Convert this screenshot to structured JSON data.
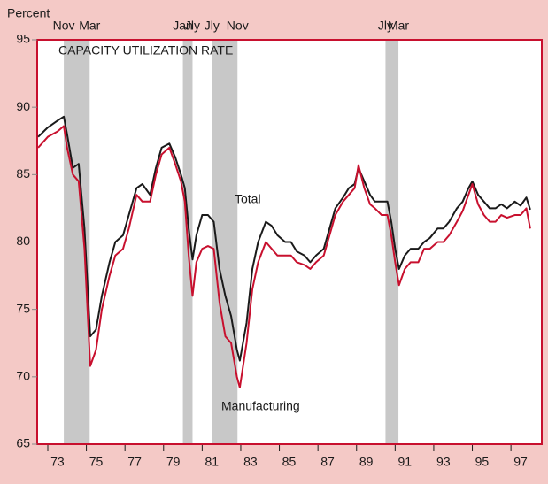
{
  "chart_data": {
    "type": "line",
    "y_label": "Percent",
    "title": "CAPACITY UTILIZATION RATE",
    "annotations": [
      "Total",
      "Manufacturing"
    ],
    "x": [
      1972.5,
      1973.0,
      1973.5,
      1973.83,
      1974.0,
      1974.3,
      1974.6,
      1974.9,
      1975.2,
      1975.5,
      1975.8,
      1976.2,
      1976.5,
      1976.9,
      1977.2,
      1977.6,
      1977.9,
      1978.3,
      1978.6,
      1978.9,
      1979.3,
      1979.6,
      1979.9,
      1980.1,
      1980.3,
      1980.5,
      1980.7,
      1981.0,
      1981.3,
      1981.6,
      1981.9,
      1982.2,
      1982.5,
      1982.8,
      1982.95,
      1983.3,
      1983.6,
      1983.9,
      1984.3,
      1984.6,
      1984.9,
      1985.3,
      1985.6,
      1985.9,
      1986.3,
      1986.6,
      1986.9,
      1987.3,
      1987.6,
      1987.9,
      1988.3,
      1988.6,
      1988.9,
      1989.1,
      1989.4,
      1989.7,
      1989.95,
      1990.3,
      1990.6,
      1990.8,
      1991.0,
      1991.2,
      1991.5,
      1991.8,
      1992.2,
      1992.5,
      1992.8,
      1993.2,
      1993.5,
      1993.8,
      1994.2,
      1994.5,
      1994.8,
      1995.0,
      1995.3,
      1995.6,
      1995.9,
      1996.2,
      1996.5,
      1996.8,
      1997.2,
      1997.5,
      1997.8,
      1998.0
    ],
    "series": [
      {
        "name": "Total",
        "color": "#1a1a1a",
        "values": [
          87.8,
          88.5,
          89.0,
          89.3,
          88.0,
          85.5,
          85.8,
          81.0,
          73.0,
          73.5,
          76.0,
          78.5,
          80.0,
          80.5,
          82.0,
          84.0,
          84.3,
          83.5,
          85.5,
          87.0,
          87.3,
          86.3,
          85.0,
          84.0,
          81.0,
          78.7,
          80.5,
          82.0,
          82.0,
          81.5,
          78.0,
          76.0,
          74.5,
          72.0,
          71.2,
          74.0,
          78.0,
          80.0,
          81.5,
          81.2,
          80.5,
          80.0,
          80.0,
          79.3,
          79.0,
          78.5,
          79.0,
          79.5,
          81.0,
          82.5,
          83.3,
          84.0,
          84.3,
          85.5,
          84.5,
          83.5,
          83.0,
          83.0,
          83.0,
          81.5,
          79.5,
          78.0,
          79.0,
          79.5,
          79.5,
          80.0,
          80.3,
          81.0,
          81.0,
          81.5,
          82.5,
          83.0,
          84.0,
          84.5,
          83.5,
          83.0,
          82.5,
          82.5,
          82.8,
          82.5,
          83.0,
          82.7,
          83.3,
          82.4
        ]
      },
      {
        "name": "Manufacturing",
        "color": "#c8102e",
        "values": [
          87.0,
          87.8,
          88.2,
          88.6,
          87.0,
          85.0,
          84.5,
          79.5,
          70.8,
          72.0,
          75.0,
          77.5,
          79.0,
          79.5,
          81.0,
          83.5,
          83.0,
          83.0,
          85.0,
          86.5,
          87.0,
          85.8,
          84.5,
          83.0,
          79.0,
          76.0,
          78.5,
          79.5,
          79.7,
          79.5,
          75.5,
          73.0,
          72.5,
          70.0,
          69.2,
          72.5,
          76.5,
          78.5,
          80.0,
          79.5,
          79.0,
          79.0,
          79.0,
          78.5,
          78.3,
          78.0,
          78.5,
          79.0,
          80.5,
          82.0,
          83.0,
          83.5,
          84.0,
          85.7,
          84.0,
          82.8,
          82.5,
          82.0,
          82.0,
          80.5,
          78.5,
          76.8,
          78.0,
          78.5,
          78.5,
          79.5,
          79.5,
          80.0,
          80.0,
          80.5,
          81.5,
          82.3,
          83.5,
          84.3,
          82.8,
          82.0,
          81.5,
          81.5,
          82.0,
          81.8,
          82.0,
          82.0,
          82.5,
          81.0
        ]
      }
    ],
    "recessions": [
      {
        "start": 1973.83,
        "end": 1975.17,
        "labels": [
          "Nov",
          "Mar"
        ]
      },
      {
        "start": 1980.0,
        "end": 1980.5,
        "labels": [
          "Jan",
          "Jly"
        ]
      },
      {
        "start": 1981.5,
        "end": 1982.83,
        "labels": [
          "Jly",
          "Nov"
        ]
      },
      {
        "start": 1990.5,
        "end": 1991.17,
        "labels": [
          "Jly",
          "Mar"
        ]
      }
    ],
    "recession_color": "#c8c8c8",
    "xlim": [
      1972.45,
      1998.6
    ],
    "xticks": [
      {
        "value": 1973,
        "label": "73"
      },
      {
        "value": 1975,
        "label": "75"
      },
      {
        "value": 1977,
        "label": "77"
      },
      {
        "value": 1979,
        "label": "79"
      },
      {
        "value": 1981,
        "label": "81"
      },
      {
        "value": 1983,
        "label": "83"
      },
      {
        "value": 1985,
        "label": "85"
      },
      {
        "value": 1987,
        "label": "87"
      },
      {
        "value": 1989,
        "label": "89"
      },
      {
        "value": 1991,
        "label": "91"
      },
      {
        "value": 1993,
        "label": "93"
      },
      {
        "value": 1995,
        "label": "95"
      },
      {
        "value": 1997,
        "label": "97"
      }
    ],
    "ylim": [
      65,
      95
    ],
    "yticks": [
      65,
      70,
      75,
      80,
      85,
      90,
      95
    ]
  }
}
